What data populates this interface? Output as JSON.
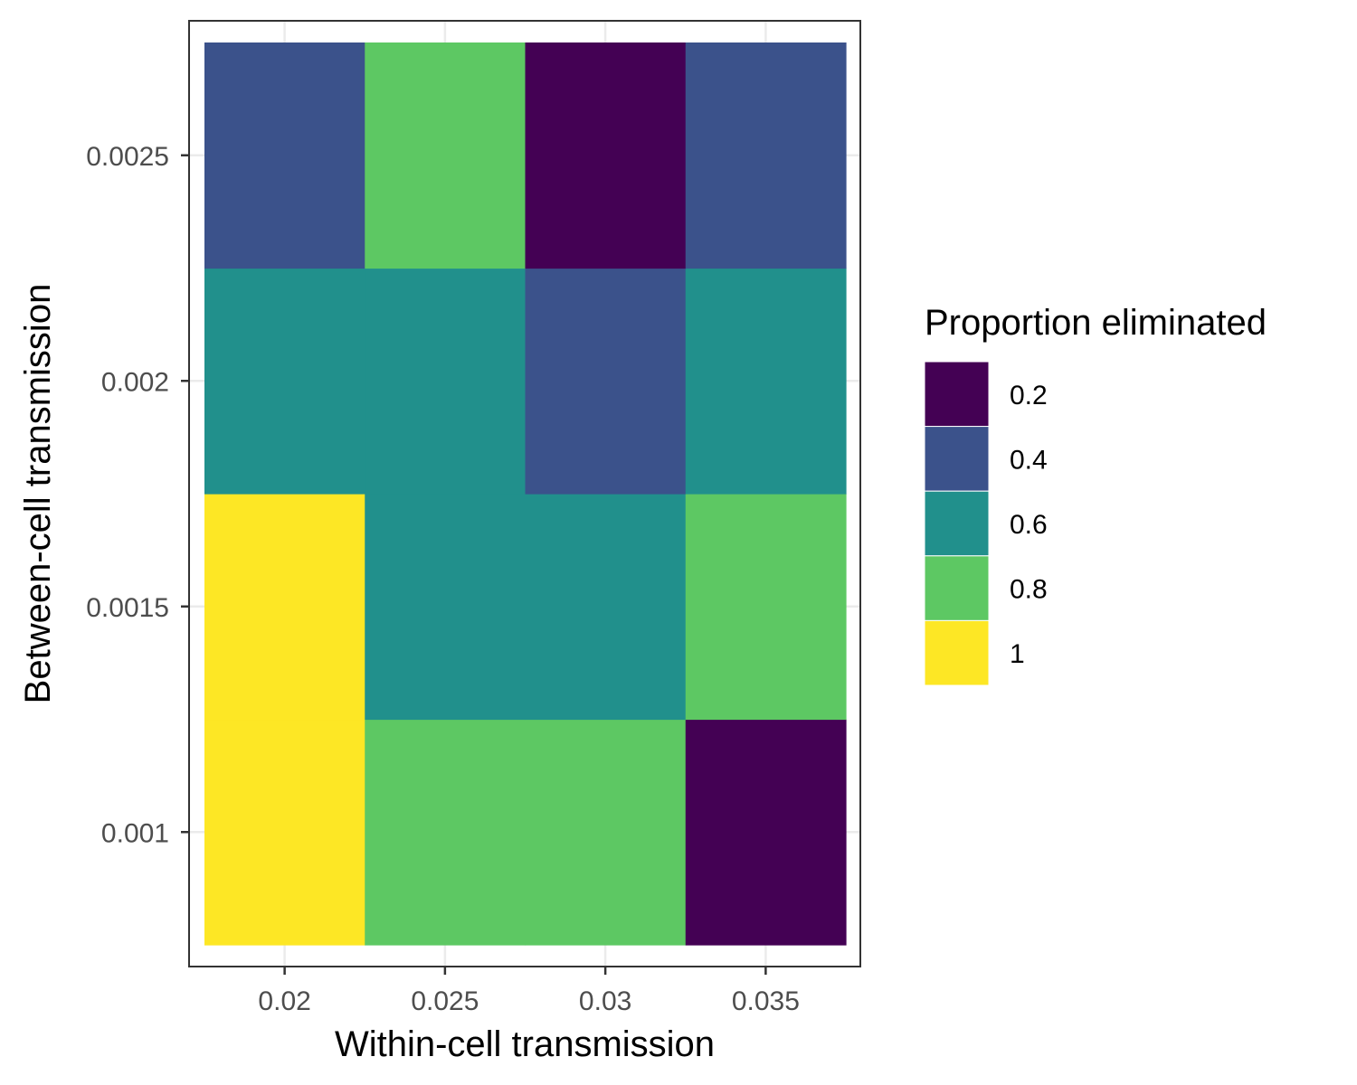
{
  "chart_data": {
    "type": "heatmap",
    "xlabel": "Within-cell transmission",
    "ylabel": "Between-cell transmission",
    "x_categories": [
      "0.02",
      "0.025",
      "0.03",
      "0.035"
    ],
    "y_categories": [
      "0.001",
      "0.0015",
      "0.002",
      "0.0025"
    ],
    "values": [
      [
        1.0,
        0.8,
        0.8,
        0.2
      ],
      [
        1.0,
        0.6,
        0.6,
        0.8
      ],
      [
        0.6,
        0.6,
        0.4,
        0.6
      ],
      [
        0.4,
        0.8,
        0.2,
        0.4
      ]
    ],
    "grid": true,
    "legend": {
      "title": "Proportion eliminated",
      "position": "right",
      "breaks": [
        "0.2",
        "0.4",
        "0.6",
        "0.8",
        "1"
      ],
      "colors": [
        "#440154",
        "#3b528b",
        "#21908c",
        "#5dc863",
        "#fde725"
      ]
    }
  }
}
